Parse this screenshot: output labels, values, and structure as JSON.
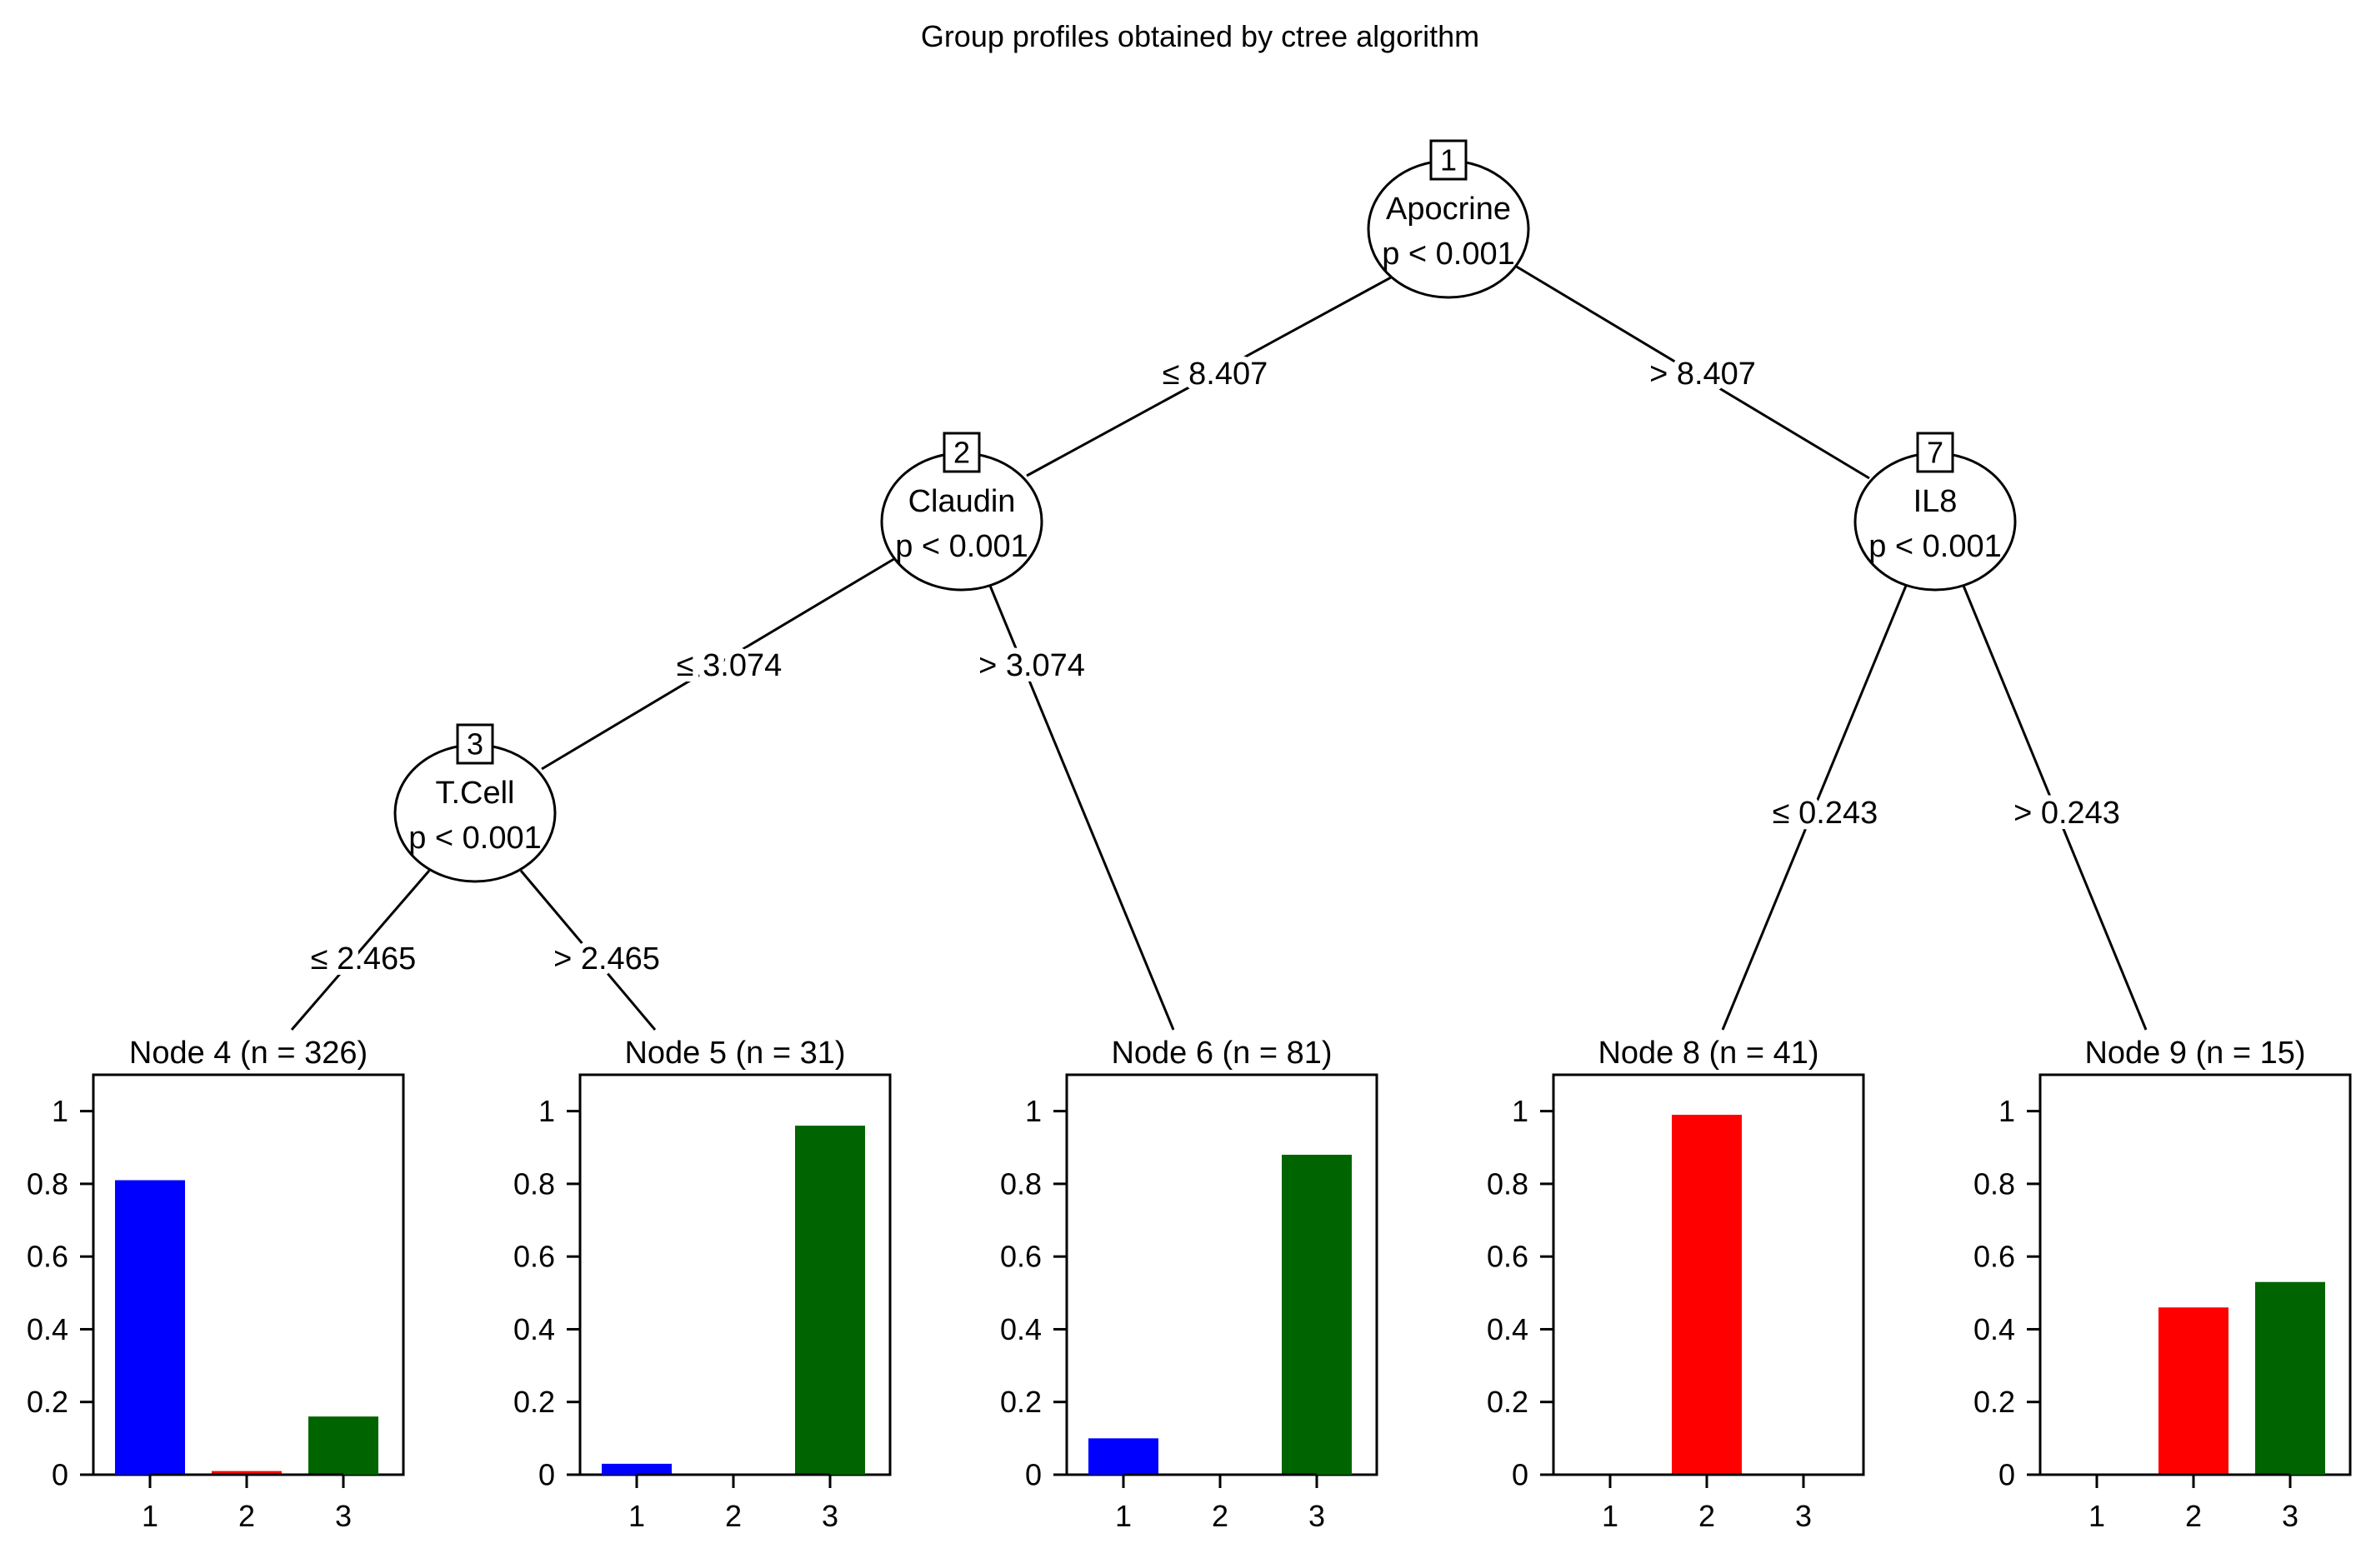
{
  "title": "Group profiles obtained by ctree algorithm",
  "colors": {
    "1": "#0000ff",
    "2": "#ff0000",
    "3": "#006400"
  },
  "tree": {
    "inner_nodes": [
      {
        "id": "1",
        "variable": "Apocrine",
        "p_text": "p < 0.001"
      },
      {
        "id": "2",
        "variable": "Claudin",
        "p_text": "p < 0.001"
      },
      {
        "id": "3",
        "variable": "T.Cell",
        "p_text": "p < 0.001"
      },
      {
        "id": "7",
        "variable": "IL8",
        "p_text": "p < 0.001"
      }
    ],
    "edges": [
      {
        "from": "1",
        "to": "2",
        "label": "≤ 8.407"
      },
      {
        "from": "1",
        "to": "7",
        "label": "> 8.407"
      },
      {
        "from": "2",
        "to": "3",
        "label": "≤ 3.074"
      },
      {
        "from": "2",
        "to": "6",
        "label": "> 3.074"
      },
      {
        "from": "3",
        "to": "4",
        "label": "≤ 2.465"
      },
      {
        "from": "3",
        "to": "5",
        "label": "> 2.465"
      },
      {
        "from": "7",
        "to": "8",
        "label": "≤ 0.243"
      },
      {
        "from": "7",
        "to": "9",
        "label": "> 0.243"
      }
    ]
  },
  "chart_data": {
    "type": "bar",
    "categories": [
      "1",
      "2",
      "3"
    ],
    "ylim": [
      0,
      1.1
    ],
    "yticks": [
      "0",
      "0.2",
      "0.4",
      "0.6",
      "0.8",
      "1"
    ],
    "panels": [
      {
        "id": "4",
        "title": "Node 4 (n = 326)",
        "values": [
          0.81,
          0.01,
          0.16
        ]
      },
      {
        "id": "5",
        "title": "Node 5 (n = 31)",
        "values": [
          0.03,
          0.0,
          0.96
        ]
      },
      {
        "id": "6",
        "title": "Node 6 (n = 81)",
        "values": [
          0.1,
          0.0,
          0.88
        ]
      },
      {
        "id": "8",
        "title": "Node 8 (n = 41)",
        "values": [
          0.0,
          0.99,
          0.0
        ]
      },
      {
        "id": "9",
        "title": "Node 9 (n = 15)",
        "values": [
          0.0,
          0.46,
          0.53
        ]
      }
    ]
  }
}
